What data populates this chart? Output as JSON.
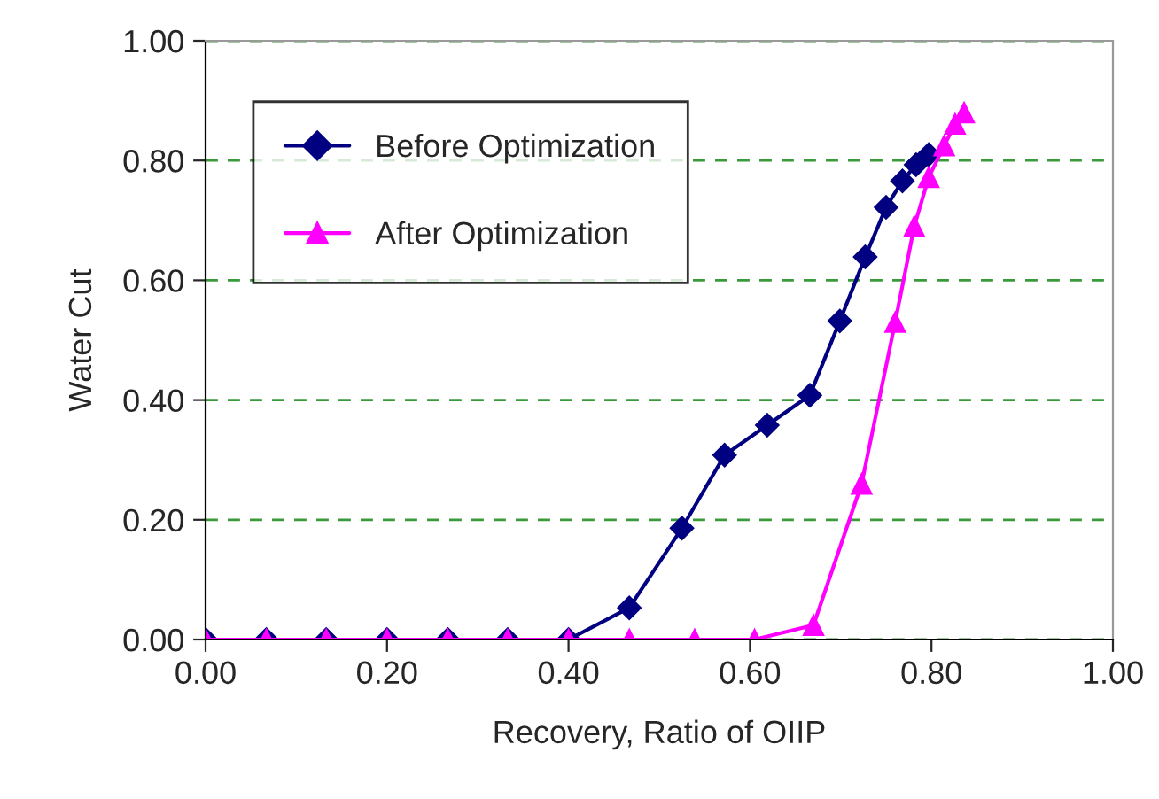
{
  "chart_data": {
    "type": "line",
    "xlabel": "Recovery, Ratio of OIIP",
    "ylabel": "Water Cut",
    "xlim": [
      0,
      1
    ],
    "xticks": [
      {
        "value": 0,
        "label": "0.00"
      },
      {
        "value": 0.2,
        "label": "0.20"
      },
      {
        "value": 0.4,
        "label": "0.40"
      },
      {
        "value": 0.6,
        "label": "0.60"
      },
      {
        "value": 0.8,
        "label": "0.80"
      },
      {
        "value": 1,
        "label": "1.00"
      }
    ],
    "ylim": [
      0,
      1
    ],
    "yticks": [
      {
        "value": 0,
        "label": "0.00"
      },
      {
        "value": 0.2,
        "label": "0.20"
      },
      {
        "value": 0.4,
        "label": "0.40"
      },
      {
        "value": 0.6,
        "label": "0.60"
      },
      {
        "value": 0.8,
        "label": "0.80"
      },
      {
        "value": 1,
        "label": "1.00"
      }
    ],
    "grid": "y",
    "legend": "top left",
    "series": [
      {
        "name": "Before Optimization",
        "color": "#000080",
        "marker": "diamond",
        "x": [
          0,
          0.067,
          0.133,
          0.2,
          0.267,
          0.333,
          0.4,
          0.467,
          0.525,
          0.572,
          0.619,
          0.666,
          0.699,
          0.727,
          0.75,
          0.768,
          0.783,
          0.797
        ],
        "values": [
          0,
          0,
          0,
          0,
          0,
          0,
          0,
          0.053,
          0.186,
          0.308,
          0.358,
          0.408,
          0.532,
          0.639,
          0.722,
          0.766,
          0.793,
          0.81
        ]
      },
      {
        "name": "After Optimization",
        "color": "#ff00ff",
        "marker": "triangle",
        "x": [
          0,
          0.067,
          0.133,
          0.2,
          0.267,
          0.333,
          0.4,
          0.467,
          0.539,
          0.605,
          0.67,
          0.723,
          0.76,
          0.781,
          0.797,
          0.814,
          0.826,
          0.836
        ],
        "values": [
          0,
          0,
          0,
          0,
          0,
          0,
          0,
          0,
          0,
          0,
          0.024,
          0.26,
          0.53,
          0.69,
          0.772,
          0.825,
          0.861,
          0.88
        ]
      }
    ]
  }
}
